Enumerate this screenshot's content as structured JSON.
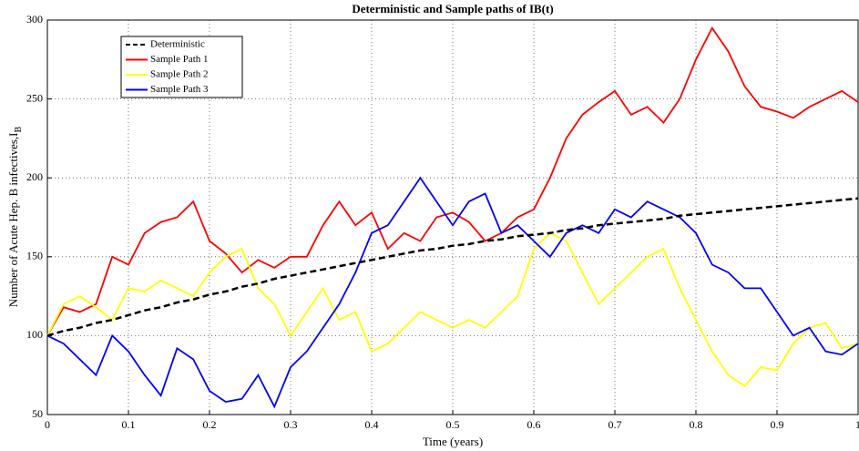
{
  "chart_data": {
    "type": "line",
    "title": "Deterministic and Sample paths of IB(t)",
    "x_label": "Time (years)",
    "y_label": "Number of Acute Hep. B infectives,I",
    "y_label_subscript": "B",
    "x": [
      0,
      0.02,
      0.04,
      0.06,
      0.08,
      0.1,
      0.12,
      0.14,
      0.16,
      0.18,
      0.2,
      0.22,
      0.24,
      0.26,
      0.28,
      0.3,
      0.32,
      0.34,
      0.36,
      0.38,
      0.4,
      0.42,
      0.44,
      0.46,
      0.48,
      0.5,
      0.52,
      0.54,
      0.56,
      0.58,
      0.6,
      0.62,
      0.64,
      0.66,
      0.68,
      0.7,
      0.72,
      0.74,
      0.76,
      0.78,
      0.8,
      0.82,
      0.84,
      0.86,
      0.88,
      0.9,
      0.92,
      0.94,
      0.96,
      0.98,
      1
    ],
    "series": [
      {
        "name": "Deterministic",
        "color": "#000000",
        "style": "dashed",
        "values": [
          100,
          103,
          105,
          108,
          110,
          113,
          116,
          118,
          121,
          123,
          126,
          128,
          131,
          133,
          136,
          138,
          140,
          142,
          144,
          146,
          148,
          150,
          152,
          154,
          155,
          157,
          158,
          160,
          161,
          163,
          164,
          165,
          167,
          168,
          170,
          171,
          172,
          173,
          174,
          176,
          177,
          178,
          179,
          180,
          181,
          182,
          183,
          184,
          185,
          186,
          187
        ]
      },
      {
        "name": "Sample Path 1",
        "color": "#ff0000",
        "style": "solid",
        "values": [
          100,
          118,
          115,
          120,
          150,
          145,
          165,
          172,
          175,
          185,
          160,
          152,
          140,
          148,
          143,
          150,
          150,
          170,
          185,
          170,
          178,
          155,
          165,
          160,
          175,
          178,
          172,
          160,
          165,
          175,
          180,
          200,
          225,
          240,
          248,
          255,
          240,
          245,
          235,
          250,
          275,
          295,
          280,
          258,
          245,
          242,
          238,
          245,
          250,
          255,
          248
        ]
      },
      {
        "name": "Sample Path 2",
        "color": "#ffff00",
        "style": "solid",
        "values": [
          100,
          120,
          125,
          118,
          110,
          130,
          128,
          135,
          130,
          125,
          140,
          150,
          155,
          130,
          120,
          100,
          115,
          130,
          110,
          115,
          90,
          95,
          105,
          115,
          110,
          105,
          110,
          105,
          115,
          125,
          155,
          165,
          160,
          140,
          120,
          130,
          140,
          150,
          155,
          130,
          110,
          90,
          75,
          68,
          80,
          78,
          95,
          105,
          108,
          92,
          95
        ]
      },
      {
        "name": "Sample Path 3",
        "color": "#0000ff",
        "style": "solid",
        "values": [
          100,
          95,
          85,
          75,
          100,
          90,
          75,
          62,
          92,
          85,
          65,
          58,
          60,
          75,
          55,
          80,
          90,
          105,
          120,
          140,
          165,
          170,
          185,
          200,
          185,
          170,
          185,
          190,
          165,
          170,
          160,
          150,
          165,
          170,
          165,
          180,
          175,
          185,
          180,
          175,
          165,
          145,
          140,
          130,
          130,
          115,
          100,
          105,
          90,
          88,
          95
        ]
      }
    ],
    "xlim": [
      0,
      1
    ],
    "xticks": [
      0,
      0.1,
      0.2,
      0.3,
      0.4,
      0.5,
      0.6,
      0.7,
      0.8,
      0.9,
      1
    ],
    "ylim": [
      50,
      300
    ],
    "yticks": [
      50,
      100,
      150,
      200,
      250,
      300
    ],
    "grid": true,
    "legend": "upper left"
  }
}
